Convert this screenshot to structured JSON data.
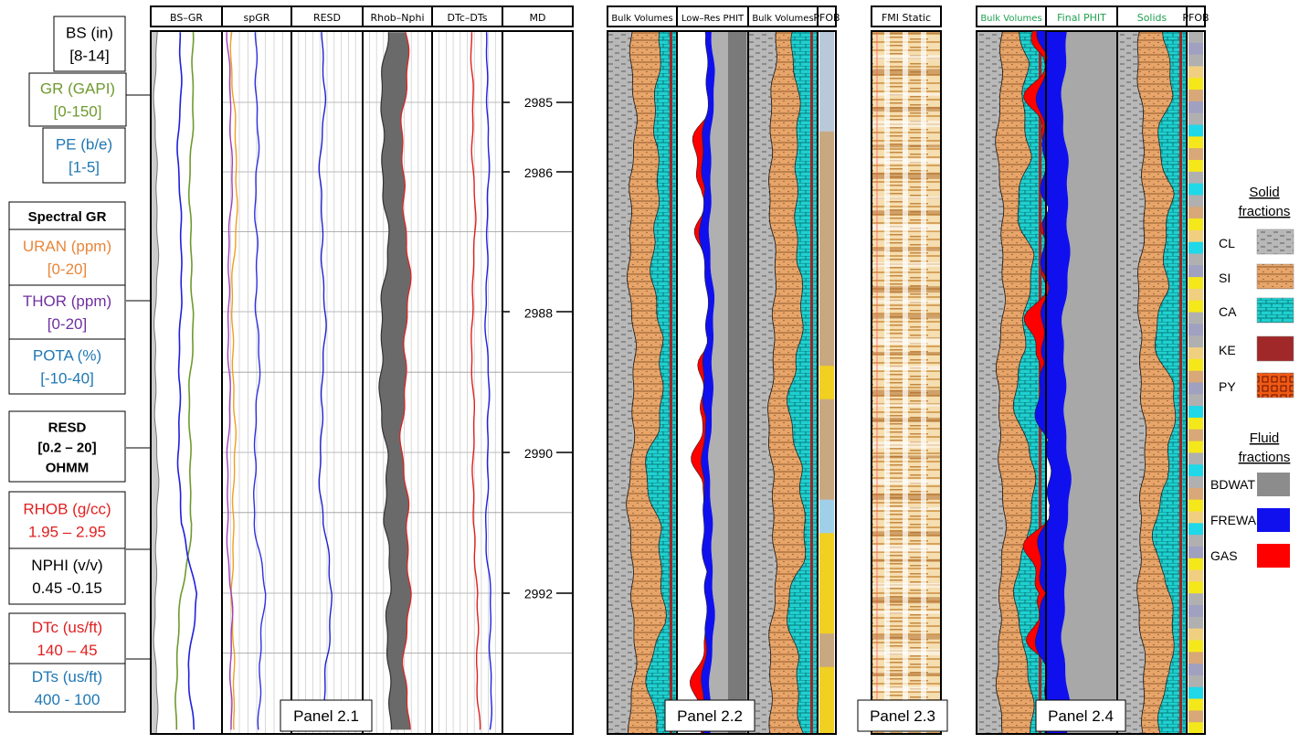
{
  "colors": {
    "gr": "#6f9a2e",
    "pe": "#2020dd",
    "bs": "#808080",
    "uran": "#f0a020",
    "thor": "#a040c0",
    "pota": "#3030e0",
    "resd": "#2020d0",
    "rhob": "#e02020",
    "nphi": "#555555",
    "dtc": "#e02020",
    "dts": "#2020e0",
    "clay": "#b8b8b8",
    "silt": "#e8a56a",
    "calcite": "#20d0d0",
    "kerogen": "#a02828",
    "pyrite": "#f05a14",
    "bdwat": "#8c8c8c",
    "frewa": "#1010ee",
    "gas": "#ff0000"
  },
  "legend_left": [
    {
      "text": [
        "BS (in)",
        "[8-14]"
      ],
      "color": "#000000"
    },
    {
      "text": [
        "GR (GAPI)",
        "[0-150]"
      ],
      "color": "#6f9a2e"
    },
    {
      "text": [
        "PE (b/e)",
        "[1-5]"
      ],
      "color": "#1f77b4"
    },
    {
      "text": [
        "Spectral GR"
      ],
      "color": "#000000",
      "bold": true
    },
    {
      "text": [
        "URAN (ppm)",
        "[0-20]"
      ],
      "color": "#e8863a"
    },
    {
      "text": [
        "THOR (ppm)",
        "[0-20]"
      ],
      "color": "#7030a0"
    },
    {
      "text": [
        "POTA (%)",
        "[-10-40]"
      ],
      "color": "#1f77b4"
    },
    {
      "text": [
        "RESD",
        "[0.2 – 20]",
        "OHMM"
      ],
      "color": "#000000",
      "bold": true
    },
    {
      "text": [
        "RHOB (g/cc)",
        "1.95 – 2.95"
      ],
      "color": "#e02020"
    },
    {
      "text": [
        "NPHI (v/v)",
        "0.45 -0.15"
      ],
      "color": "#000000"
    },
    {
      "text": [
        "DTc (us/ft)",
        "140 – 45"
      ],
      "color": "#e02020"
    },
    {
      "text": [
        "DTs (us/ft)",
        "400 - 100"
      ],
      "color": "#1f77b4"
    }
  ],
  "panels": [
    {
      "name": "Panel 2.1",
      "tracks": [
        "BS–GR",
        "spGR",
        "RESD",
        "Rhob–Nphi",
        "DTc–DTs",
        "MD"
      ]
    },
    {
      "name": "Panel 2.2",
      "tracks": [
        "Bulk Volumes",
        "Low–Res PHIT",
        "Bulk Volumes",
        "PFOB"
      ]
    },
    {
      "name": "Panel 2.3",
      "tracks": [
        "FMI Static"
      ]
    },
    {
      "name": "Panel 2.4",
      "tracks": [
        "Bulk Volumes",
        "Final PHIT",
        "Solids",
        "PFOB"
      ]
    }
  ],
  "legend_right": {
    "solid_title": [
      "Solid",
      "fractions"
    ],
    "solid_items": [
      {
        "label": "CL",
        "key": "clay"
      },
      {
        "label": "SI",
        "key": "silt"
      },
      {
        "label": "CA",
        "key": "calcite"
      },
      {
        "label": "KE",
        "key": "kerogen"
      },
      {
        "label": "PY",
        "key": "pyrite"
      }
    ],
    "fluid_title": [
      "Fluid",
      "fractions"
    ],
    "fluid_items": [
      {
        "label": "BDWAT",
        "key": "bdwat"
      },
      {
        "label": "FREWA",
        "key": "frewa"
      },
      {
        "label": "GAS",
        "key": "gas"
      }
    ]
  },
  "chart_data": {
    "type": "line",
    "title": "",
    "depth_axis": {
      "label": "MD",
      "range": [
        2984.0,
        2994.0
      ],
      "ticks": [
        2985,
        2986,
        2988,
        2990,
        2992
      ]
    },
    "depth": [
      2984.0,
      2985.0,
      2986.0,
      2987.0,
      2988.0,
      2989.0,
      2990.0,
      2991.0,
      2992.0,
      2993.0,
      2994.0
    ],
    "series": [
      {
        "name": "GR",
        "unit": "GAPI",
        "range": [
          0,
          150
        ],
        "values": [
          85,
          88,
          86,
          84,
          86,
          83,
          85,
          86,
          62,
          55,
          58
        ]
      },
      {
        "name": "PE",
        "unit": "b/e",
        "range": [
          1,
          5
        ],
        "values": [
          2.6,
          2.7,
          2.6,
          2.7,
          2.6,
          2.7,
          2.6,
          2.6,
          3.6,
          3.2,
          3.4
        ]
      },
      {
        "name": "URAN",
        "unit": "ppm",
        "range": [
          0,
          20
        ],
        "values": [
          3,
          3.5,
          4,
          3.6,
          3.2,
          3.5,
          3.2,
          3.3,
          3.4,
          3.1,
          3.3
        ]
      },
      {
        "name": "THOR",
        "unit": "ppm",
        "range": [
          0,
          20
        ],
        "values": [
          2,
          2.2,
          2.5,
          2.4,
          2.1,
          1.8,
          1.6,
          1.8,
          2.8,
          2.2,
          2.5
        ]
      },
      {
        "name": "POTA",
        "unit": "%",
        "range": [
          -10,
          40
        ],
        "values": [
          14,
          14,
          15,
          16,
          15,
          15,
          14,
          15,
          20,
          16,
          18
        ]
      },
      {
        "name": "RESD",
        "unit": "OHMM",
        "range": [
          0.2,
          20
        ],
        "values": [
          1.4,
          1.5,
          1.45,
          1.55,
          1.5,
          1.5,
          1.45,
          1.5,
          2.5,
          1.9,
          2.1
        ]
      },
      {
        "name": "RHOB",
        "unit": "g/cc",
        "range": [
          1.95,
          2.95
        ],
        "values": [
          2.55,
          2.57,
          2.55,
          2.58,
          2.56,
          2.58,
          2.55,
          2.56,
          2.6,
          2.6,
          2.62
        ]
      },
      {
        "name": "NPHI",
        "unit": "v/v",
        "range": [
          0.45,
          -0.15
        ],
        "values": [
          0.25,
          0.26,
          0.27,
          0.26,
          0.28,
          0.27,
          0.26,
          0.27,
          0.2,
          0.22,
          0.21
        ]
      },
      {
        "name": "DTc",
        "unit": "us/ft",
        "range": [
          140,
          45
        ],
        "values": [
          85,
          84,
          86,
          83,
          85,
          84,
          86,
          85,
          76,
          80,
          78
        ]
      },
      {
        "name": "DTs",
        "unit": "us/ft",
        "range": [
          400,
          100
        ],
        "values": [
          165,
          163,
          167,
          162,
          165,
          164,
          166,
          165,
          150,
          156,
          154
        ]
      }
    ]
  }
}
